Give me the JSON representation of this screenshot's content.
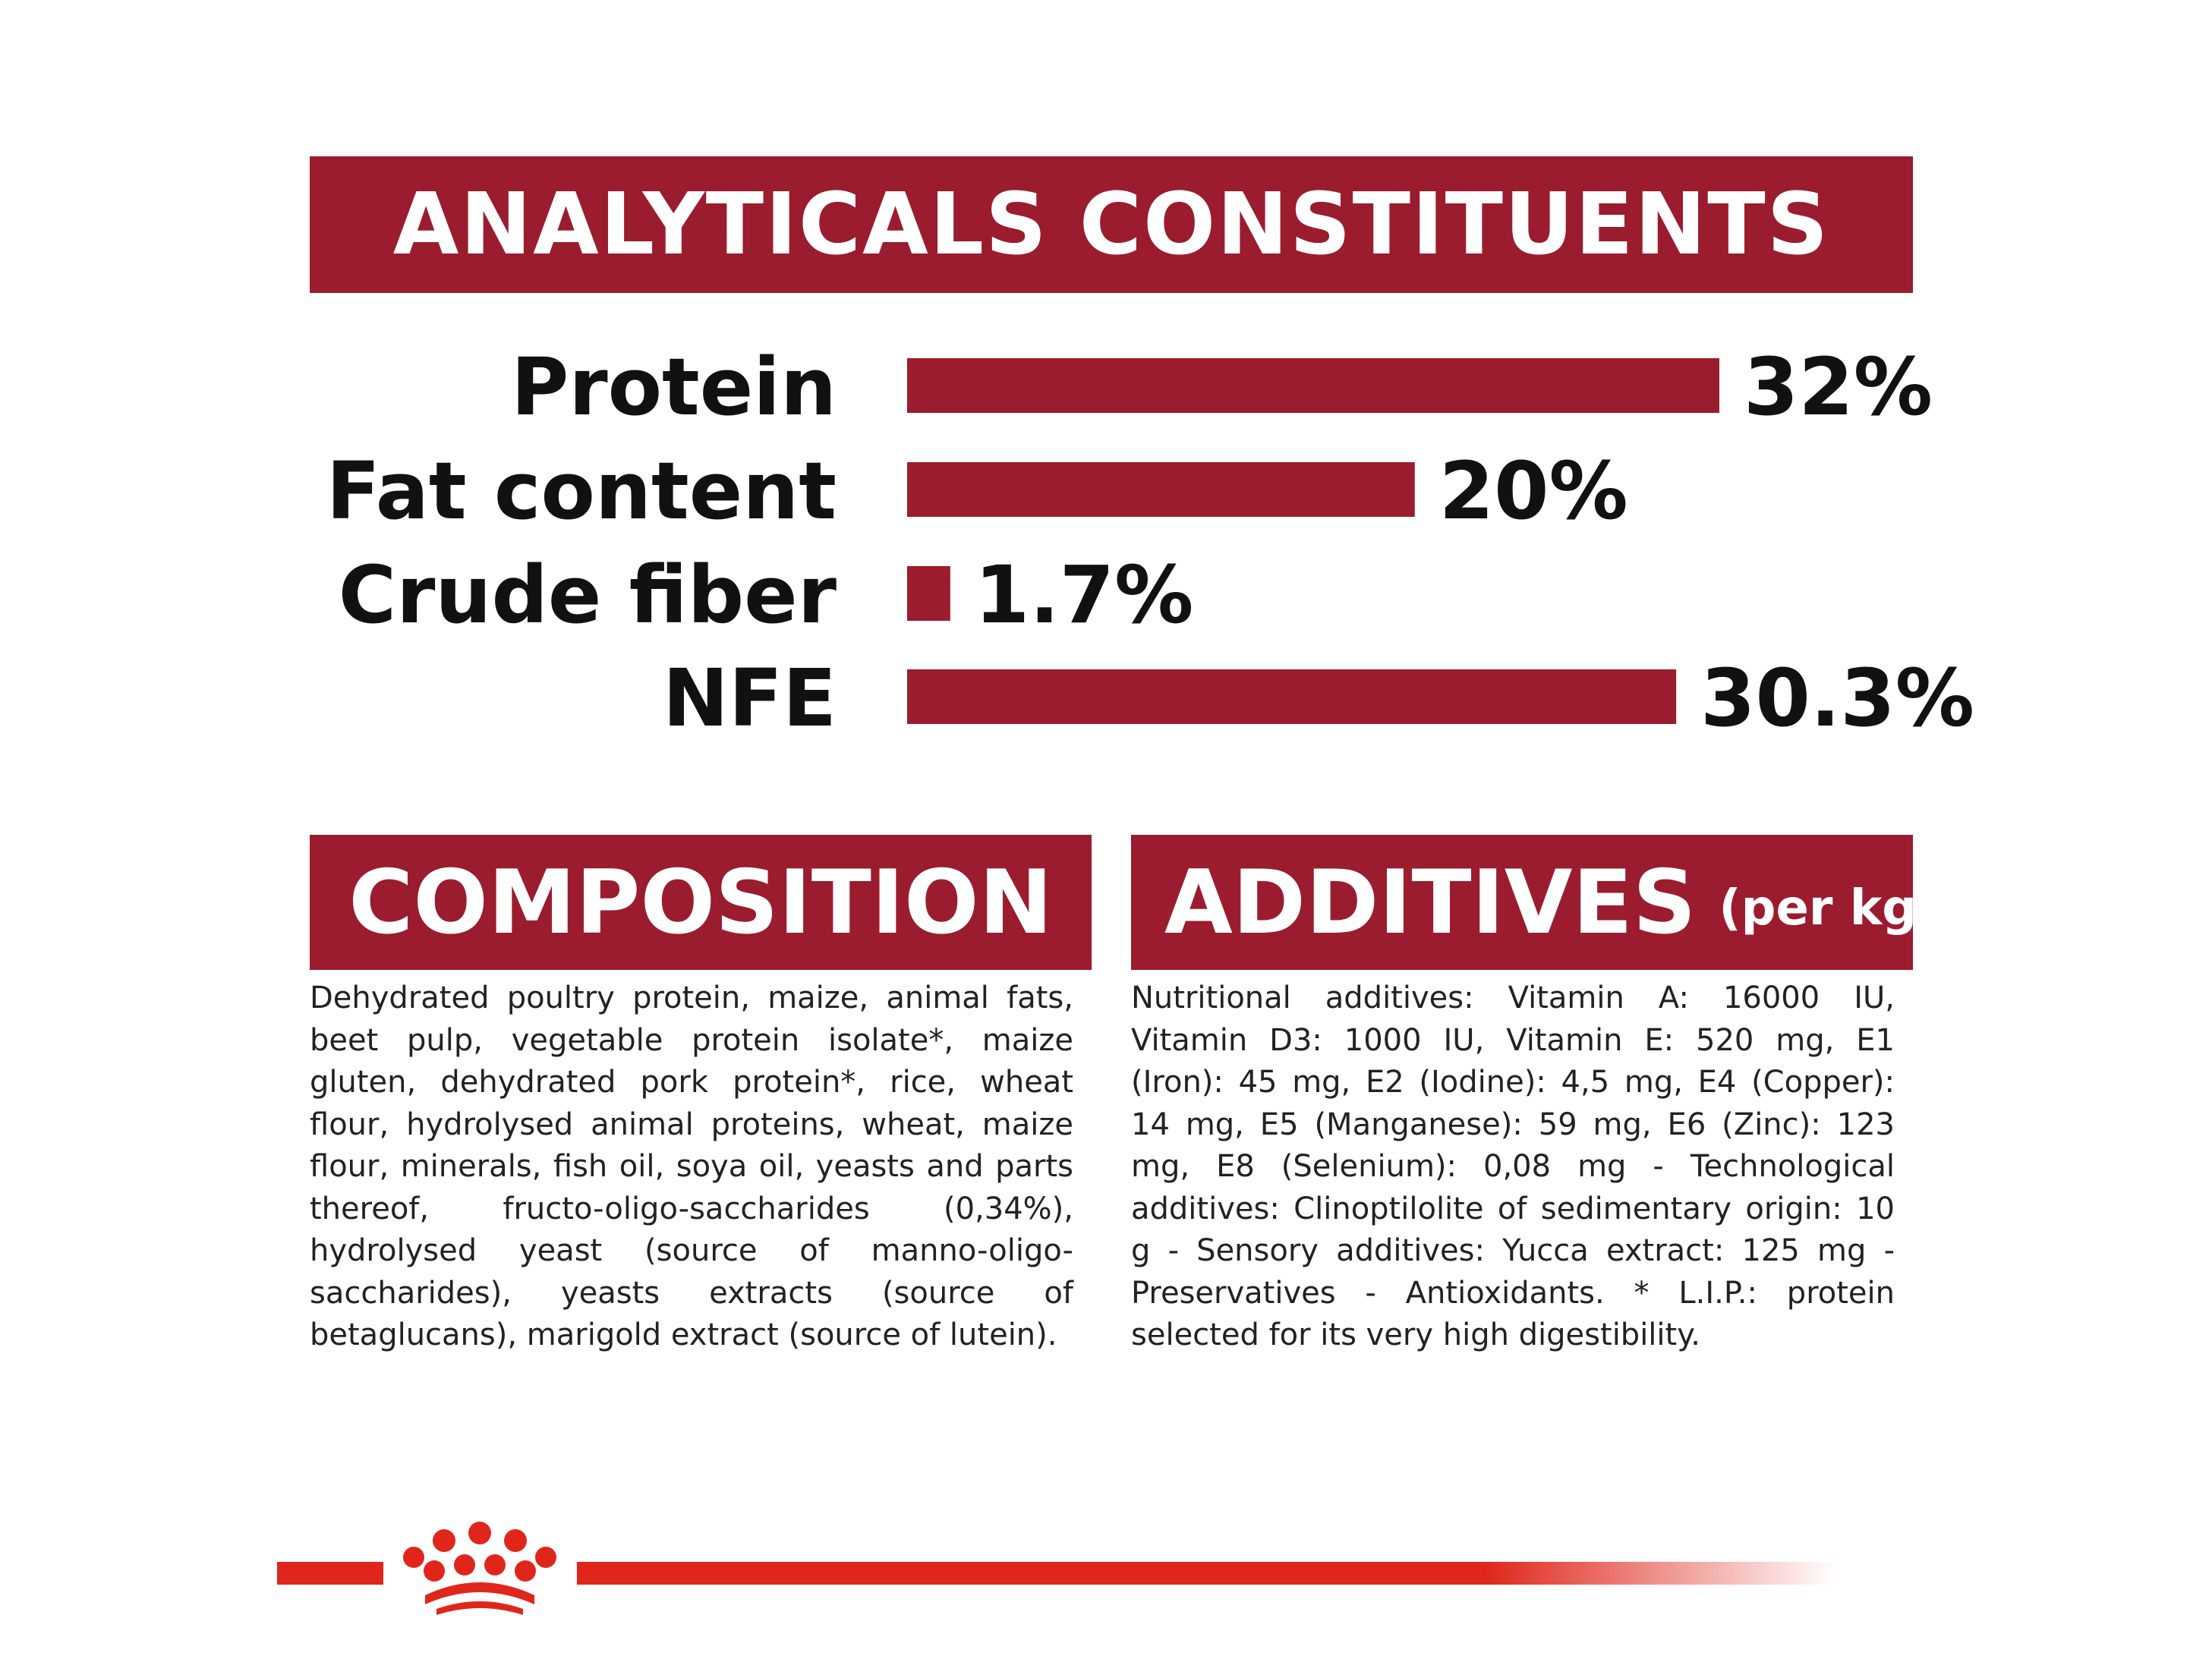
{
  "header": {
    "title": "ANALYTICALS CONSTITUENTS"
  },
  "chart_data": {
    "type": "bar",
    "orientation": "horizontal",
    "title": "ANALYTICALS CONSTITUENTS",
    "categories": [
      "Protein",
      "Fat content",
      "Crude fiber",
      "NFE"
    ],
    "values": [
      32,
      20,
      1.7,
      30.3
    ],
    "value_labels": [
      "32%",
      "20%",
      "1.7%",
      "30.3%"
    ],
    "unit": "%",
    "xlim": [
      0,
      32
    ],
    "grid": false,
    "legend": "none"
  },
  "composition": {
    "title": "COMPOSITION",
    "text": "Dehydrated poultry protein, maize, animal fats, beet pulp, vegetable protein isolate*, maize gluten, dehydrated pork protein*, rice, wheat flour, hydrolysed animal proteins, wheat, maize flour, minerals, fish oil, soya oil, yeasts and parts thereof, fructo-oligo-saccharides (0,34%), hydrolysed yeast (source of manno-oligo-saccharides), yeasts extracts (source of betaglucans), marigold extract (source of lutein)."
  },
  "additives": {
    "title": "ADDITIVES",
    "subtitle": "(per kg)",
    "text": "Nutritional additives: Vitamin A: 16000 IU, Vitamin D3: 1000 IU, Vitamin E: 520 mg, E1 (Iron): 45 mg, E2 (Iodine): 4,5 mg, E4 (Copper): 14 mg, E5 (Manganese): 59 mg, E6 (Zinc): 123 mg, E8 (Selenium): 0,08 mg - Technological additives: Clinoptilolite of sedimentary origin: 10 g - Sensory additives: Yucca extract: 125 mg - Preservatives - Antioxidants. * L.I.P.: protein selected for its very high digestibility."
  },
  "colors": {
    "banner": "#9b1c2e",
    "bar": "#9b1c2e",
    "footer_line": "#e0261b",
    "crown": "#e0261b"
  },
  "footer": {
    "logo_icon": "crown-icon"
  }
}
